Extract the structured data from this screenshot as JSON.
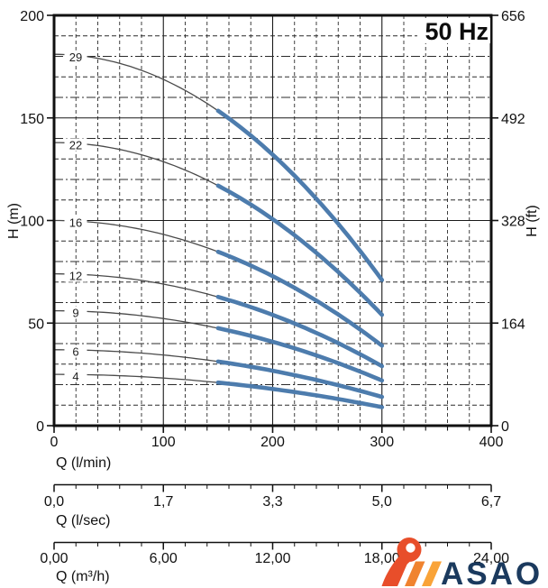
{
  "chart_data": {
    "type": "line",
    "title": "50 Hz",
    "x_axis": {
      "label": "Q (l/min)",
      "range": [
        0,
        400
      ],
      "major_ticks": [
        0,
        100,
        200,
        300,
        400
      ],
      "minor_step": 20
    },
    "y_axis_left": {
      "label": "H (m)",
      "range": [
        0,
        200
      ],
      "major_ticks": [
        200,
        150,
        100,
        50,
        0
      ],
      "minor_step": 10
    },
    "y_axis_right": {
      "label": "H (ft)",
      "major_ticks": [
        656,
        492,
        328,
        164,
        0
      ]
    },
    "secondary_x_axes": [
      {
        "label": "Q (l/sec)",
        "tick_labels": [
          "0,0",
          "1,7",
          "3,3",
          "5,0",
          "6,7"
        ]
      },
      {
        "label": "Q (m³/h)",
        "tick_labels": [
          "0,00",
          "6,00",
          "12,00",
          "18,00",
          "24,00"
        ]
      }
    ],
    "series": [
      {
        "name": "29",
        "h_start_m": 181,
        "h_end_m": 71,
        "q_start": 0,
        "q_end": 300,
        "highlight_q": [
          150,
          300
        ]
      },
      {
        "name": "22",
        "h_start_m": 138,
        "h_end_m": 54,
        "q_start": 0,
        "q_end": 300,
        "highlight_q": [
          150,
          300
        ]
      },
      {
        "name": "16",
        "h_start_m": 100,
        "h_end_m": 39,
        "q_start": 0,
        "q_end": 300,
        "highlight_q": [
          150,
          300
        ]
      },
      {
        "name": "12",
        "h_start_m": 74,
        "h_end_m": 29,
        "q_start": 0,
        "q_end": 300,
        "highlight_q": [
          150,
          300
        ]
      },
      {
        "name": "9",
        "h_start_m": 56,
        "h_end_m": 22,
        "q_start": 0,
        "q_end": 300,
        "highlight_q": [
          150,
          300
        ]
      },
      {
        "name": "6",
        "h_start_m": 37,
        "h_end_m": 14,
        "q_start": 0,
        "q_end": 300,
        "highlight_q": [
          150,
          300
        ]
      },
      {
        "name": "4",
        "h_start_m": 25,
        "h_end_m": 9,
        "q_start": 0,
        "q_end": 300,
        "highlight_q": [
          150,
          300
        ]
      }
    ],
    "grid": {
      "minor_on": true,
      "major_on": true
    },
    "colors": {
      "curve_highlight": "#4d7cad",
      "curve_thin": "#4a4a4a",
      "grid_minor": "#2b2b2b",
      "grid_major": "#1a1a1a",
      "frame": "#111111",
      "text": "#111111"
    }
  },
  "logo": {
    "text": "ASAO",
    "colors": {
      "navy": "#1b3a5e",
      "red_orange": "#e84e2a",
      "orange": "#f0832f",
      "light_orange": "#f9a338"
    }
  }
}
